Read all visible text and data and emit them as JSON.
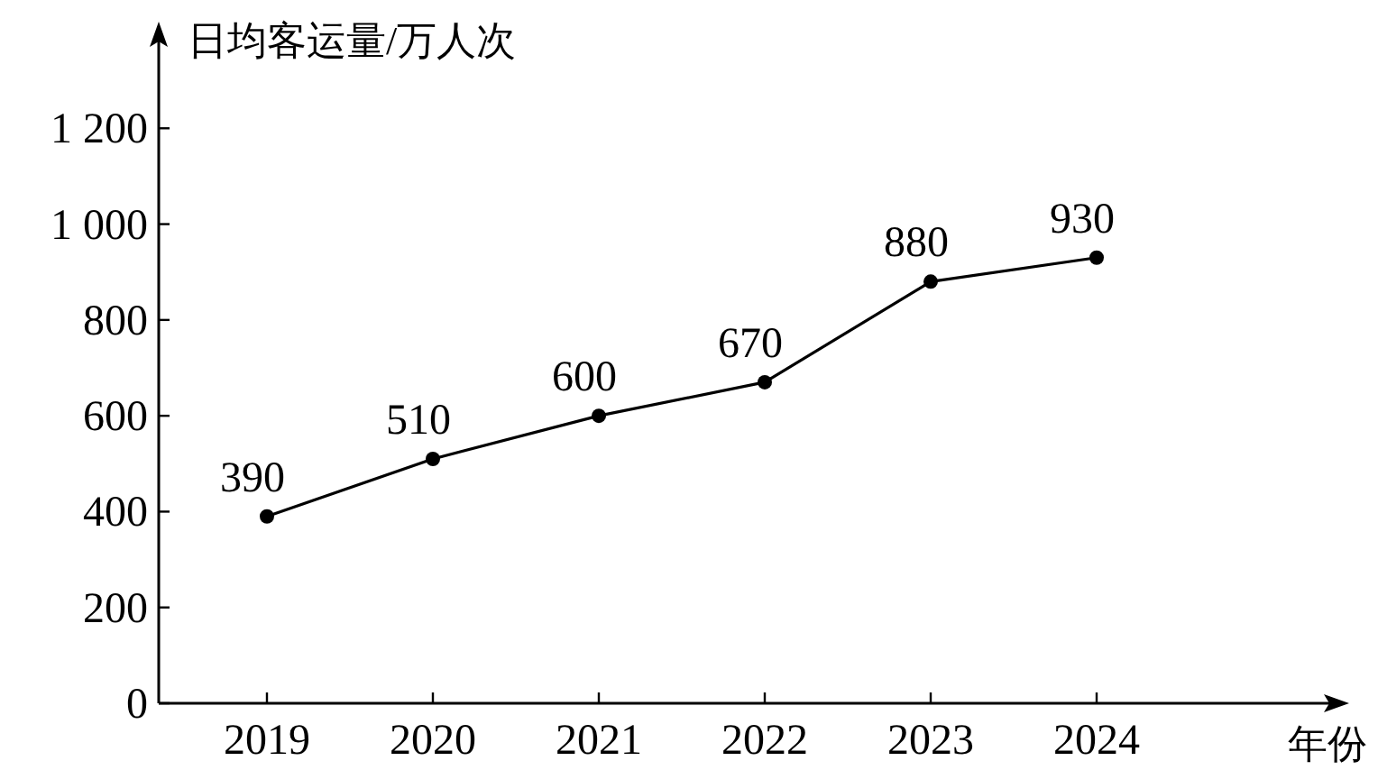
{
  "chart_data": {
    "type": "line",
    "ylabel": "日均客运量/万人次",
    "xlabel": "年份",
    "categories": [
      "2019",
      "2020",
      "2021",
      "2022",
      "2023",
      "2024"
    ],
    "series": [
      {
        "color": "#000000",
        "values": [
          390,
          510,
          600,
          670,
          880,
          930
        ]
      }
    ],
    "ylim": [
      0,
      1400
    ],
    "yticks": [
      0,
      200,
      400,
      600,
      800,
      {
        "value": 1000,
        "label": "1 000"
      },
      {
        "value": 1200,
        "label": "1 200"
      }
    ],
    "data_labels": true,
    "marker": "circle",
    "line_style": "solid"
  }
}
